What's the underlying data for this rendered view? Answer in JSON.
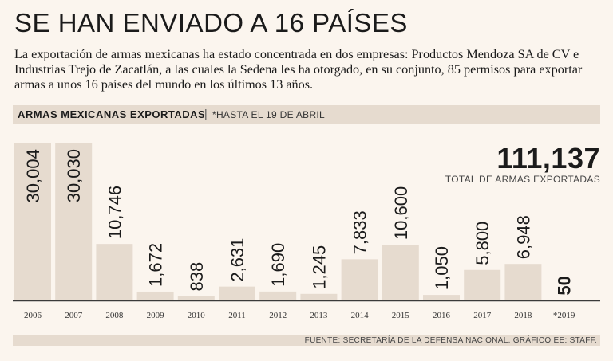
{
  "headline": "SE HAN ENVIADO A 16 PAÍSES",
  "dek": "La exportación de armas mexicanas ha estado concentrada en dos empresas: Productos Mendoza SA de CV e Industrias Trejo de Zacatlán, a las cuales la Sedena les ha otorgado, en su conjunto, 85 permisos para exportar armas a unos 16 países del mundo en los últimos 13 años.",
  "band": {
    "title": "ARMAS MEXICANAS EXPORTADAS",
    "separator": "|",
    "note": "*HASTA EL 19 DE ABRIL"
  },
  "total": {
    "value": "111,137",
    "label": "TOTAL DE ARMAS EXPORTADAS"
  },
  "source": "FUENTE: SECRETARÍA DE LA DEFENSA NACIONAL. GRÁFICO EE: STAFF.",
  "colors": {
    "background": "#fbf5ee",
    "bar": "#e6dbcf",
    "axis": "#3a3a3a",
    "text": "#1b1b1b"
  },
  "chart_data": {
    "type": "bar",
    "title": "ARMAS MEXICANAS EXPORTADAS",
    "categories": [
      "2006",
      "2007",
      "2008",
      "2009",
      "2010",
      "2011",
      "2012",
      "2013",
      "2014",
      "2015",
      "2016",
      "2017",
      "2018",
      "*2019"
    ],
    "values": [
      30004,
      30030,
      10746,
      1672,
      838,
      2631,
      1690,
      1245,
      7833,
      10600,
      1050,
      5800,
      6948,
      50
    ],
    "labels": [
      "30,004",
      "30,030",
      "10,746",
      "1,672",
      "838",
      "2,631",
      "1,690",
      "1,245",
      "7,833",
      "10,600",
      "1,050",
      "5,800",
      "6,948",
      "50"
    ],
    "xlabel": "",
    "ylabel": "",
    "ylim": [
      0,
      30030
    ]
  }
}
